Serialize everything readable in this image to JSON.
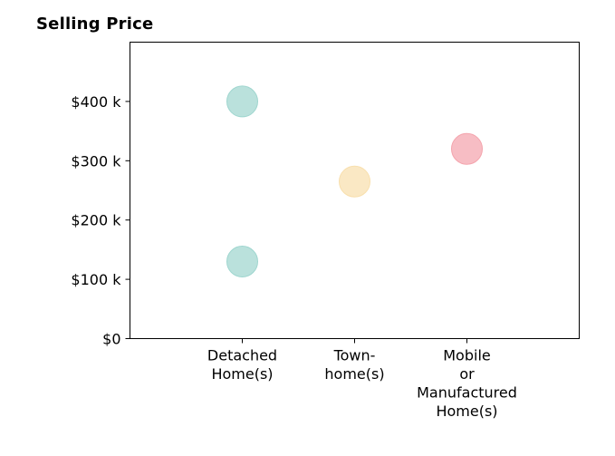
{
  "chart_data": {
    "type": "scatter",
    "title": "Selling Price",
    "xlabel": "",
    "ylabel": "",
    "categories": [
      [
        "Detached",
        "Home(s)"
      ],
      [
        "Town-",
        "home(s)"
      ],
      [
        "Mobile",
        "or",
        "Manufactured",
        "Home(s)"
      ]
    ],
    "y_ticks": [
      {
        "value": 0,
        "label": "$0"
      },
      {
        "value": 100000,
        "label": "$100 k"
      },
      {
        "value": 200000,
        "label": "$200 k"
      },
      {
        "value": 300000,
        "label": "$300 k"
      },
      {
        "value": 400000,
        "label": "$400 k"
      }
    ],
    "ylim": [
      0,
      500000
    ],
    "xlim": [
      -1,
      3
    ],
    "grid": false,
    "legend": "none",
    "points": [
      {
        "category_index": 0,
        "y": 400000,
        "color": "#9fd6cf"
      },
      {
        "category_index": 0,
        "y": 130000,
        "color": "#9fd6cf"
      },
      {
        "category_index": 1,
        "y": 265000,
        "color": "#f8dfad"
      },
      {
        "category_index": 2,
        "y": 320000,
        "color": "#f4a4ad"
      }
    ]
  }
}
